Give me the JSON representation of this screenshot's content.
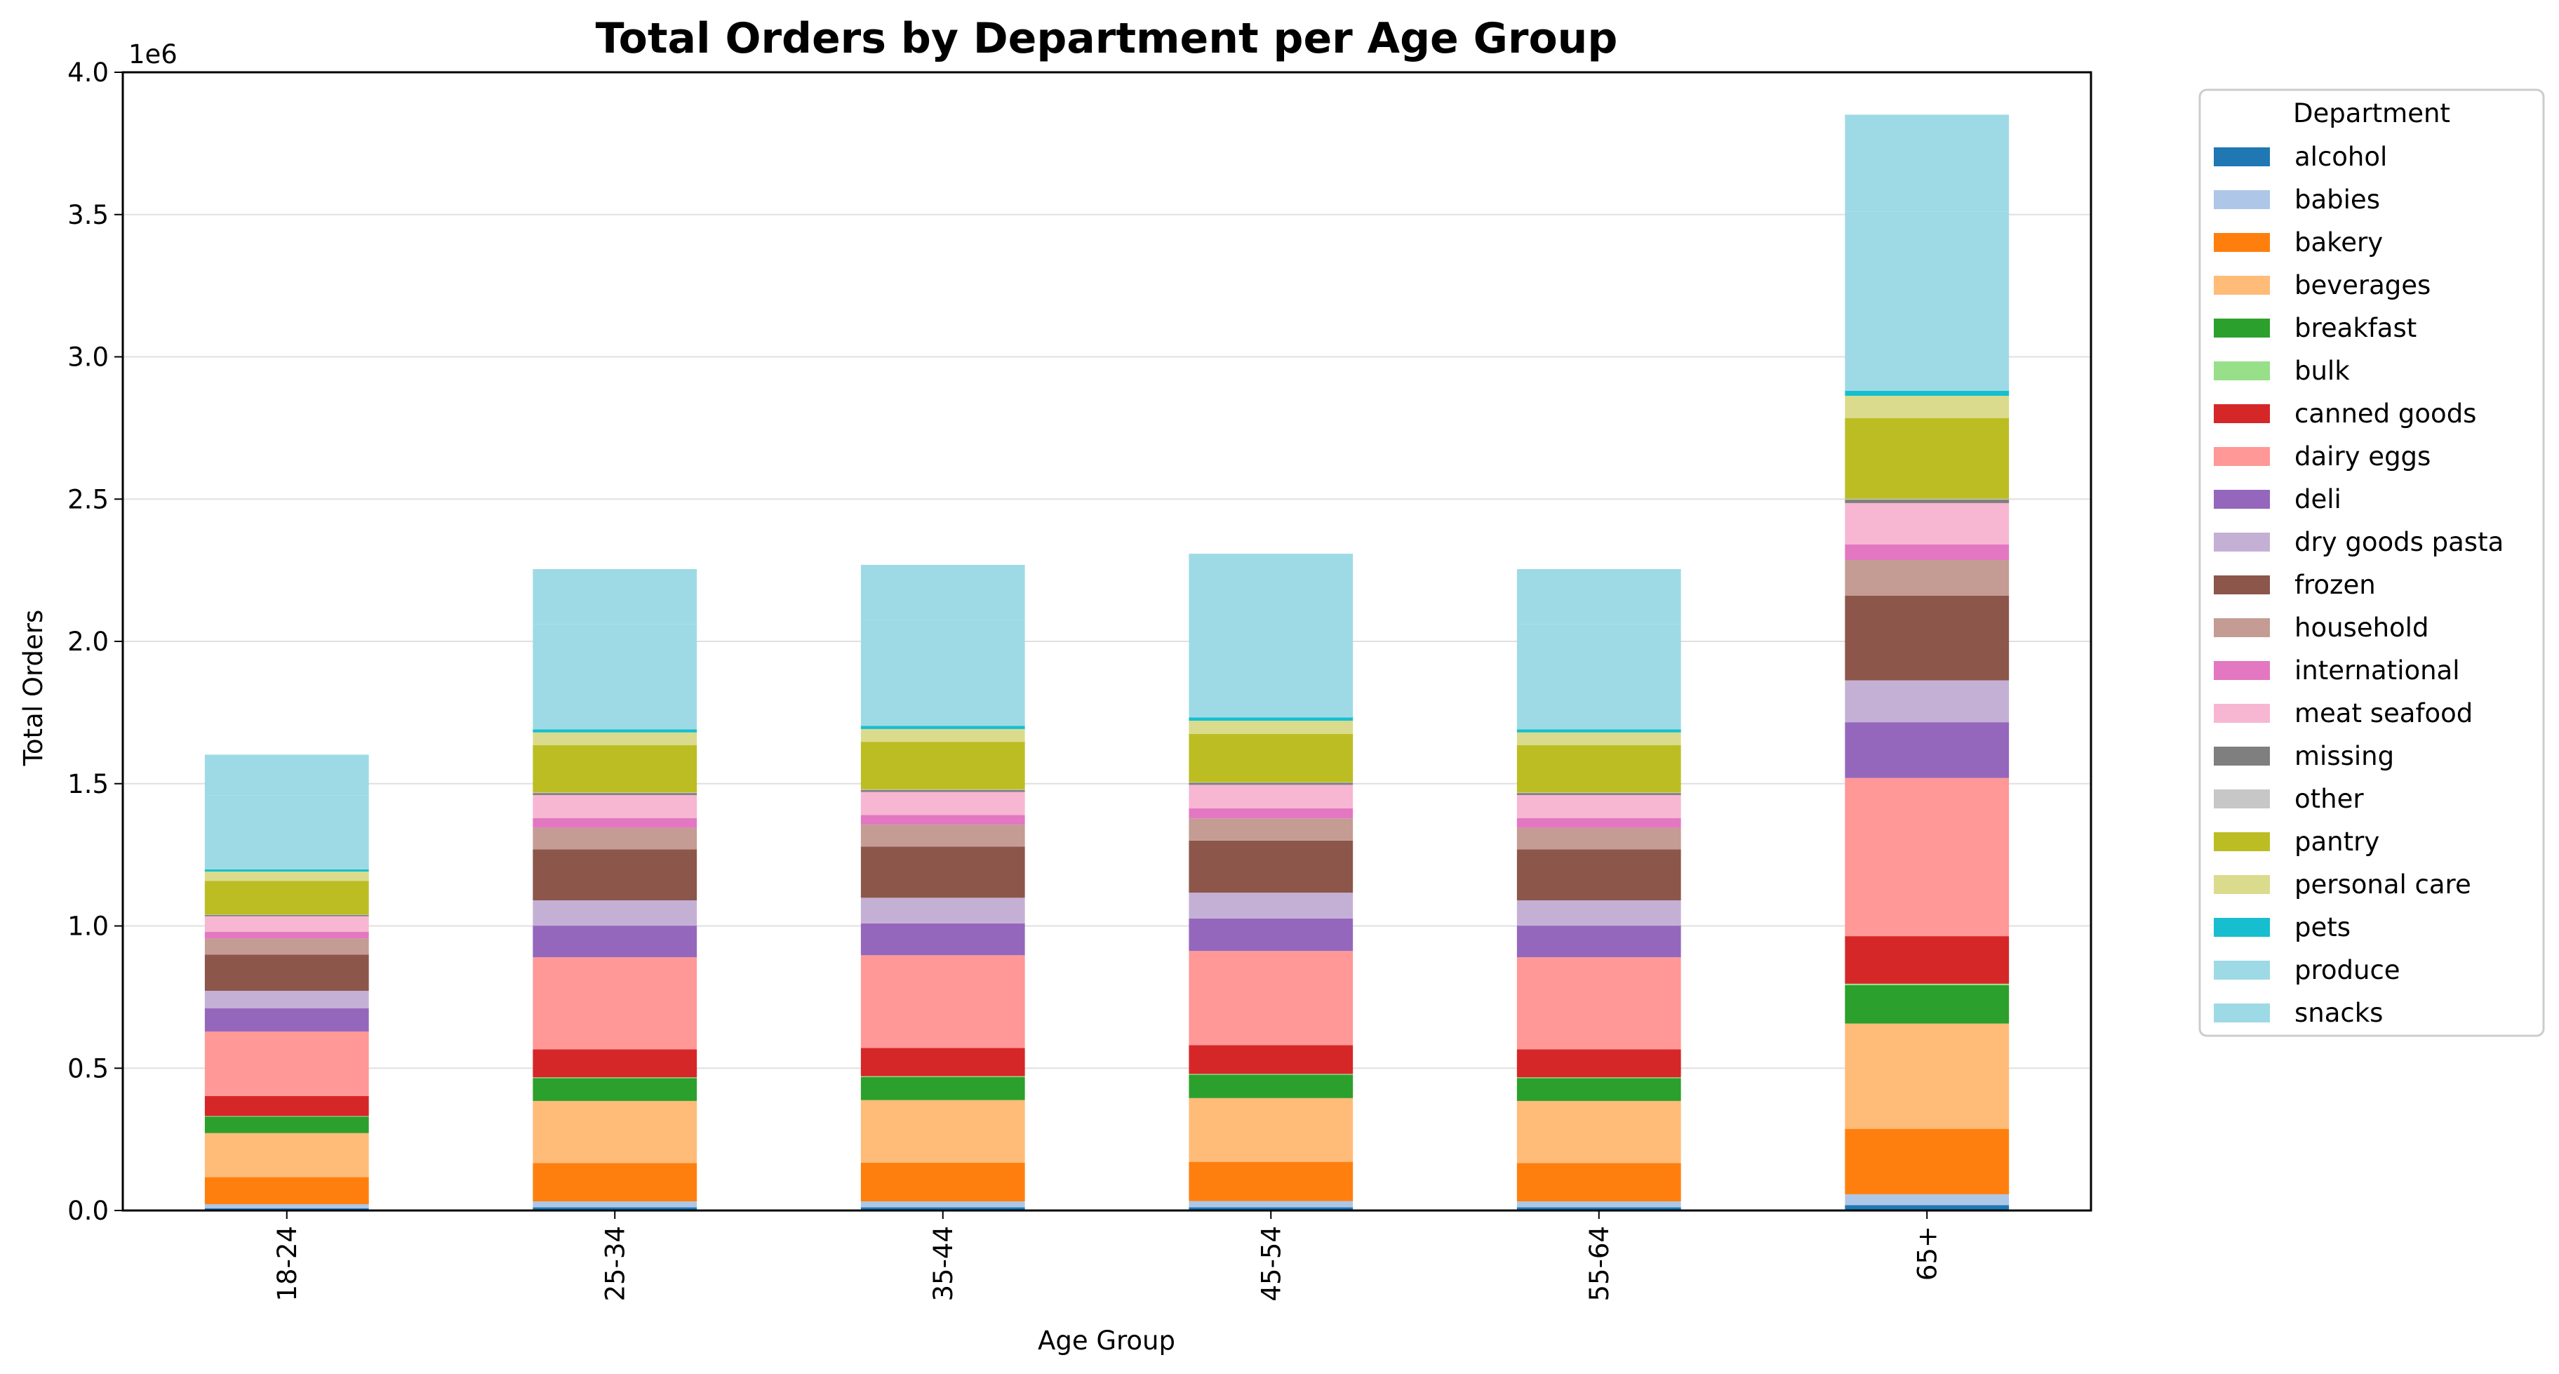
{
  "chart_data": {
    "type": "bar",
    "stacked": true,
    "title": "Total Orders by Department per Age Group",
    "xlabel": "Age Group",
    "ylabel": "Total Orders",
    "y_multiplier_label": "1e6",
    "ylim": [
      0,
      4000000
    ],
    "yticks": [
      0,
      500000,
      1000000,
      1500000,
      2000000,
      2500000,
      3000000,
      3500000,
      4000000
    ],
    "ytick_labels": [
      "0.0",
      "0.5",
      "1.0",
      "1.5",
      "2.0",
      "2.5",
      "3.0",
      "3.5",
      "4.0"
    ],
    "grid": "y",
    "legend_title": "Department",
    "legend_position": "outside-right",
    "categories": [
      "18-24",
      "25-34",
      "35-44",
      "45-54",
      "55-64",
      "65+"
    ],
    "series": [
      {
        "name": "alcohol",
        "color": "#1f77b4",
        "values": [
          8000,
          11000,
          11000,
          11000,
          11000,
          19000
        ]
      },
      {
        "name": "babies",
        "color": "#aec7e8",
        "values": [
          14000,
          21000,
          21000,
          22000,
          21000,
          38000
        ]
      },
      {
        "name": "bakery",
        "color": "#ff7f0e",
        "values": [
          95000,
          135000,
          136000,
          138000,
          135000,
          230000
        ]
      },
      {
        "name": "beverages",
        "color": "#ffbb78",
        "values": [
          155000,
          218000,
          220000,
          224000,
          218000,
          370000
        ]
      },
      {
        "name": "breakfast",
        "color": "#2ca02c",
        "values": [
          58000,
          80000,
          81000,
          82000,
          80000,
          135000
        ]
      },
      {
        "name": "bulk",
        "color": "#98df8a",
        "values": [
          2000,
          3000,
          3000,
          3000,
          3000,
          5000
        ]
      },
      {
        "name": "canned goods",
        "color": "#d62728",
        "values": [
          70000,
          98000,
          99000,
          101000,
          98000,
          167000
        ]
      },
      {
        "name": "dairy eggs",
        "color": "#ff9896",
        "values": [
          227000,
          324000,
          326000,
          331000,
          324000,
          556000
        ]
      },
      {
        "name": "deli",
        "color": "#9467bd",
        "values": [
          82000,
          111000,
          112000,
          114000,
          111000,
          196000
        ]
      },
      {
        "name": "dry goods pasta",
        "color": "#c5b0d5",
        "values": [
          61000,
          89000,
          90000,
          91000,
          89000,
          147000
        ]
      },
      {
        "name": "frozen",
        "color": "#8c564b",
        "values": [
          127000,
          179000,
          180000,
          183000,
          179000,
          298000
        ]
      },
      {
        "name": "household",
        "color": "#c49c94",
        "values": [
          57000,
          76000,
          77000,
          78000,
          76000,
          125000
        ]
      },
      {
        "name": "international",
        "color": "#e377c2",
        "values": [
          23000,
          34000,
          34000,
          35000,
          34000,
          55000
        ]
      },
      {
        "name": "meat seafood",
        "color": "#f7b6d2",
        "values": [
          55000,
          81000,
          81000,
          83000,
          81000,
          145000
        ]
      },
      {
        "name": "missing",
        "color": "#7f7f7f",
        "values": [
          5000,
          7000,
          7000,
          7000,
          7000,
          12000
        ]
      },
      {
        "name": "other",
        "color": "#c7c7c7",
        "values": [
          1000,
          2000,
          2000,
          2000,
          2000,
          3000
        ]
      },
      {
        "name": "pantry",
        "color": "#bcbd22",
        "values": [
          118000,
          166000,
          167000,
          170000,
          166000,
          284000
        ]
      },
      {
        "name": "personal care",
        "color": "#dbdb8d",
        "values": [
          33000,
          45000,
          45000,
          46000,
          45000,
          78000
        ]
      },
      {
        "name": "pets",
        "color": "#17becf",
        "values": [
          8000,
          11000,
          11000,
          12000,
          11000,
          18000
        ]
      },
      {
        "name": "produce",
        "color": "#9edae5",
        "values": [
          260000,
          370000,
          372000,
          378000,
          370000,
          630000
        ]
      },
      {
        "name": "snacks",
        "color": "#9edae5",
        "values": [
          143000,
          193000,
          194000,
          197000,
          193000,
          340000
        ]
      }
    ]
  }
}
